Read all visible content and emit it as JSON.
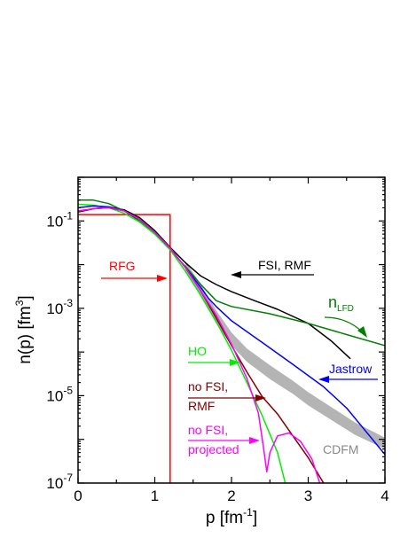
{
  "chart_data": {
    "type": "line",
    "xlabel": "p [fm",
    "xlabel_sup": "-1",
    "xlabel_tail": "]",
    "ylabel": "n(p) [fm",
    "ylabel_sup": "3",
    "ylabel_tail": "]",
    "xlim": [
      0,
      4
    ],
    "ylim": [
      1e-07,
      1
    ],
    "yscale": "log",
    "grid": false,
    "x_ticks": [
      {
        "value": 0,
        "label": "0"
      },
      {
        "value": 1,
        "label": "1"
      },
      {
        "value": 2,
        "label": "2"
      },
      {
        "value": 3,
        "label": "3"
      },
      {
        "value": 4,
        "label": "4"
      }
    ],
    "y_ticks": [
      {
        "value": 1e-07,
        "base": "10",
        "exp": "-7"
      },
      {
        "value": 1e-05,
        "base": "10",
        "exp": "-5"
      },
      {
        "value": 0.001,
        "base": "10",
        "exp": "-3"
      },
      {
        "value": 0.1,
        "base": "10",
        "exp": "-1"
      }
    ],
    "series": [
      {
        "key": "rfg",
        "color": "#ff0000",
        "points": [
          [
            0,
            0.14
          ],
          [
            1.2,
            0.14
          ],
          [
            1.2,
            1e-07
          ]
        ]
      },
      {
        "key": "fsi_rmf",
        "color": "#000000",
        "points": [
          [
            0,
            0.16
          ],
          [
            0.2,
            0.19
          ],
          [
            0.4,
            0.21
          ],
          [
            0.6,
            0.18
          ],
          [
            0.8,
            0.12
          ],
          [
            1.0,
            0.06
          ],
          [
            1.2,
            0.025
          ],
          [
            1.4,
            0.011
          ],
          [
            1.6,
            0.0055
          ],
          [
            1.8,
            0.0035
          ],
          [
            2.0,
            0.0024
          ],
          [
            2.3,
            0.0015
          ],
          [
            2.6,
            0.00095
          ],
          [
            3.0,
            0.00045
          ],
          [
            3.3,
            0.00018
          ],
          [
            3.55,
            7e-05
          ]
        ]
      },
      {
        "key": "n_lfd",
        "color": "#008000",
        "points": [
          [
            0,
            0.3
          ],
          [
            0.2,
            0.3
          ],
          [
            0.4,
            0.25
          ],
          [
            0.6,
            0.17
          ],
          [
            0.8,
            0.1
          ],
          [
            1.0,
            0.05
          ],
          [
            1.2,
            0.022
          ],
          [
            1.4,
            0.009
          ],
          [
            1.6,
            0.0035
          ],
          [
            1.8,
            0.0015
          ],
          [
            2.0,
            0.0011
          ],
          [
            2.5,
            0.00075
          ],
          [
            3.0,
            0.00045
          ],
          [
            3.5,
            0.00025
          ],
          [
            4.0,
            0.00014
          ]
        ]
      },
      {
        "key": "ho",
        "color": "#00ee00",
        "points": [
          [
            0,
            0.24
          ],
          [
            0.2,
            0.23
          ],
          [
            0.4,
            0.2
          ],
          [
            0.6,
            0.15
          ],
          [
            0.8,
            0.095
          ],
          [
            1.0,
            0.05
          ],
          [
            1.2,
            0.022
          ],
          [
            1.4,
            0.007
          ],
          [
            1.6,
            0.002
          ],
          [
            1.8,
            0.0005
          ],
          [
            2.0,
            0.00011
          ],
          [
            2.2,
            2e-05
          ],
          [
            2.4,
            3.5e-06
          ],
          [
            2.6,
            5e-07
          ],
          [
            2.7,
            1e-07
          ]
        ]
      },
      {
        "key": "jastrow",
        "color": "#0000ff",
        "points": [
          [
            0,
            0.2
          ],
          [
            0.2,
            0.22
          ],
          [
            0.4,
            0.21
          ],
          [
            0.6,
            0.17
          ],
          [
            0.8,
            0.11
          ],
          [
            1.0,
            0.055
          ],
          [
            1.2,
            0.024
          ],
          [
            1.4,
            0.0085
          ],
          [
            1.6,
            0.003
          ],
          [
            1.7,
            0.0017
          ],
          [
            1.8,
            0.0011
          ],
          [
            2.0,
            0.00052
          ],
          [
            2.4,
            0.000165
          ],
          [
            2.8,
            5.2e-05
          ],
          [
            3.2,
            1.6e-05
          ],
          [
            3.5,
            5.2e-06
          ],
          [
            3.8,
            1.2e-06
          ],
          [
            4.0,
            4.5e-07
          ]
        ]
      },
      {
        "key": "no_fsi_rmf",
        "color": "#800000",
        "points": [
          [
            0,
            0.16
          ],
          [
            0.2,
            0.19
          ],
          [
            0.4,
            0.2
          ],
          [
            0.6,
            0.17
          ],
          [
            0.8,
            0.11
          ],
          [
            1.0,
            0.055
          ],
          [
            1.2,
            0.024
          ],
          [
            1.4,
            0.0085
          ],
          [
            1.6,
            0.0025
          ],
          [
            1.8,
            0.0006
          ],
          [
            2.0,
            0.00014
          ],
          [
            2.2,
            3.5e-05
          ],
          [
            2.4,
            9.5e-06
          ],
          [
            2.6,
            3.8e-06
          ],
          [
            2.8,
            1.2e-06
          ],
          [
            3.0,
            3.8e-07
          ],
          [
            3.2,
            1e-07
          ]
        ]
      },
      {
        "key": "no_fsi_projected",
        "color": "#ff00ff",
        "points": [
          [
            0,
            0.17
          ],
          [
            0.2,
            0.19
          ],
          [
            0.4,
            0.2
          ],
          [
            0.6,
            0.17
          ],
          [
            0.8,
            0.11
          ],
          [
            1.0,
            0.055
          ],
          [
            1.2,
            0.024
          ],
          [
            1.4,
            0.0085
          ],
          [
            1.6,
            0.0025
          ],
          [
            1.8,
            0.0007
          ],
          [
            2.0,
            0.00015
          ],
          [
            2.2,
            2.5e-05
          ],
          [
            2.35,
            4e-06
          ],
          [
            2.42,
            6e-07
          ],
          [
            2.46,
            1.8e-07
          ],
          [
            2.5,
            5e-07
          ],
          [
            2.6,
            1.2e-06
          ],
          [
            2.75,
            1.4e-06
          ],
          [
            2.9,
            9e-07
          ],
          [
            3.05,
            3.5e-07
          ],
          [
            3.15,
            1e-07
          ]
        ]
      }
    ],
    "band": {
      "key": "cdfm",
      "color": "#b4b4b4",
      "upper": [
        [
          1.4,
          0.012
        ],
        [
          1.6,
          0.0035
        ],
        [
          1.8,
          0.0009
        ],
        [
          2.0,
          0.00028
        ],
        [
          2.2,
          0.00012
        ],
        [
          2.5,
          5e-05
        ],
        [
          2.8,
          2.2e-05
        ],
        [
          3.0,
          1.2e-05
        ],
        [
          3.3,
          5.5e-06
        ],
        [
          3.6,
          2.5e-06
        ],
        [
          4.0,
          1.1e-06
        ]
      ],
      "lower": [
        [
          1.4,
          0.007
        ],
        [
          1.6,
          0.0018
        ],
        [
          1.8,
          0.00045
        ],
        [
          2.0,
          0.00014
        ],
        [
          2.2,
          6e-05
        ],
        [
          2.5,
          2.4e-05
        ],
        [
          2.8,
          1.1e-05
        ],
        [
          3.0,
          6e-06
        ],
        [
          3.3,
          2.8e-06
        ],
        [
          3.6,
          1.3e-06
        ],
        [
          4.0,
          6e-07
        ]
      ]
    },
    "annotations": {
      "rfg": "RFG",
      "fsi_rmf": "FSI, RMF",
      "n_lfd": "n",
      "n_lfd_sub": "LFD",
      "ho": "HO",
      "jastrow": "Jastrow",
      "no_fsi_rmf_1": "no FSI,",
      "no_fsi_rmf_2": "RMF",
      "no_fsi_projected_1": "no FSI,",
      "no_fsi_projected_2": "projected",
      "cdfm": "CDFM"
    }
  }
}
